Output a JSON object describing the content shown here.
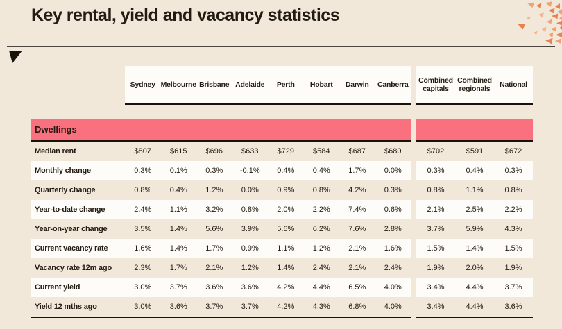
{
  "page": {
    "title": "Key rental, yield and vacancy statistics"
  },
  "colors": {
    "background": "#F2E8DA",
    "section_band": "#F9707E",
    "row_highlight": "#FDFCF9",
    "text": "#221B12",
    "border": "#18120B",
    "confetti": [
      "#F0A276",
      "#E8824F",
      "#F4B58E"
    ]
  },
  "chart_data": {
    "type": "table",
    "title": "Key rental, yield and vacancy statistics",
    "section": "Dwellings",
    "columns": [
      "Sydney",
      "Melbourne",
      "Brisbane",
      "Adelaide",
      "Perth",
      "Hobart",
      "Darwin",
      "Canberra",
      "Combined capitals",
      "Combined regionals",
      "National"
    ],
    "column_groups": [
      {
        "name": "capital-cities",
        "span": 8
      },
      {
        "name": "aggregates",
        "span": 3
      }
    ],
    "rows": [
      {
        "label": "Median rent",
        "values": [
          "$807",
          "$615",
          "$696",
          "$633",
          "$729",
          "$584",
          "$687",
          "$680",
          "$702",
          "$591",
          "$672"
        ]
      },
      {
        "label": "Monthly change",
        "values": [
          "0.3%",
          "0.1%",
          "0.3%",
          "-0.1%",
          "0.4%",
          "0.4%",
          "1.7%",
          "0.0%",
          "0.3%",
          "0.4%",
          "0.3%"
        ]
      },
      {
        "label": "Quarterly change",
        "values": [
          "0.8%",
          "0.4%",
          "1.2%",
          "0.0%",
          "0.9%",
          "0.8%",
          "4.2%",
          "0.3%",
          "0.8%",
          "1.1%",
          "0.8%"
        ]
      },
      {
        "label": "Year-to-date change",
        "values": [
          "2.4%",
          "1.1%",
          "3.2%",
          "0.8%",
          "2.0%",
          "2.2%",
          "7.4%",
          "0.6%",
          "2.1%",
          "2.5%",
          "2.2%"
        ]
      },
      {
        "label": "Year-on-year change",
        "values": [
          "3.5%",
          "1.4%",
          "5.6%",
          "3.9%",
          "5.6%",
          "6.2%",
          "7.6%",
          "2.8%",
          "3.7%",
          "5.9%",
          "4.3%"
        ]
      },
      {
        "label": "Current vacancy rate",
        "values": [
          "1.6%",
          "1.4%",
          "1.7%",
          "0.9%",
          "1.1%",
          "1.2%",
          "2.1%",
          "1.6%",
          "1.5%",
          "1.4%",
          "1.5%"
        ]
      },
      {
        "label": "Vacancy rate 12m ago",
        "values": [
          "2.3%",
          "1.7%",
          "2.1%",
          "1.2%",
          "1.4%",
          "2.4%",
          "2.1%",
          "2.4%",
          "1.9%",
          "2.0%",
          "1.9%"
        ]
      },
      {
        "label": "Current yield",
        "values": [
          "3.0%",
          "3.7%",
          "3.6%",
          "3.6%",
          "4.2%",
          "4.4%",
          "6.5%",
          "4.0%",
          "3.4%",
          "4.4%",
          "3.7%"
        ]
      },
      {
        "label": "Yield 12 mths ago",
        "values": [
          "3.0%",
          "3.6%",
          "3.7%",
          "3.7%",
          "4.2%",
          "4.3%",
          "6.8%",
          "4.0%",
          "3.4%",
          "4.4%",
          "3.6%"
        ]
      }
    ]
  }
}
